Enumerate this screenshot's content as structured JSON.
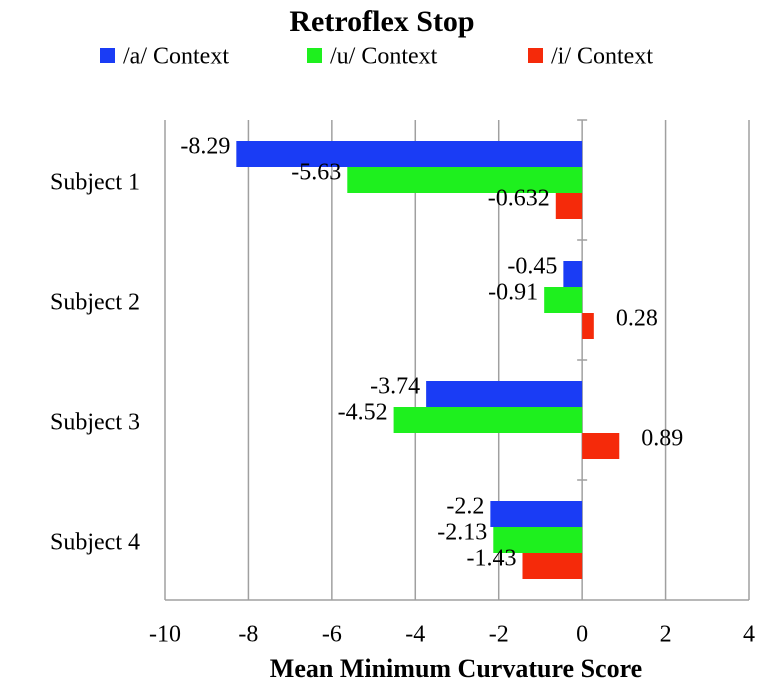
{
  "chart_data": {
    "type": "barh",
    "title": "Retroflex Stop",
    "xlabel": "Mean Minimum Curvature Score",
    "categories": [
      "Subject 1",
      "Subject 2",
      "Subject 3",
      "Subject 4"
    ],
    "series": [
      {
        "name": "/a/ Context",
        "color": "#1a3cf5",
        "values": [
          -8.29,
          -0.45,
          -3.74,
          -2.2
        ]
      },
      {
        "name": "/u/ Context",
        "color": "#1ef01e",
        "values": [
          -5.63,
          -0.91,
          -4.52,
          -2.13
        ]
      },
      {
        "name": "/i/ Context",
        "color": "#f52a0a",
        "values": [
          -0.632,
          0.28,
          0.89,
          -1.43
        ]
      }
    ],
    "xlim": [
      -10,
      4
    ],
    "xticks": [
      -10,
      -8,
      -6,
      -4,
      -2,
      0,
      2,
      4
    ],
    "grid": true,
    "legend": "top"
  }
}
